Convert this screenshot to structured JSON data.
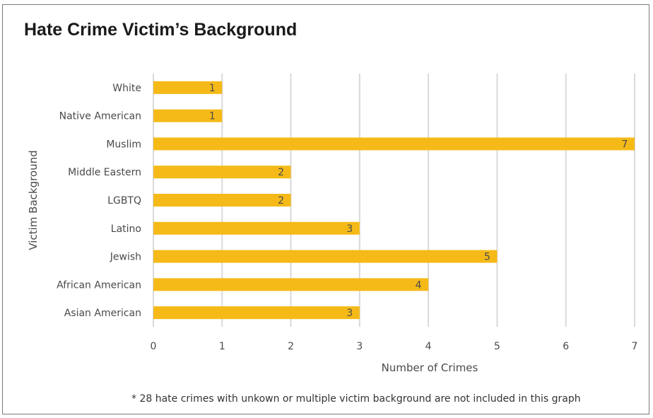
{
  "title": "Hate Crime Victim’s Background",
  "footnote": "* 28 hate crimes with unkown or multiple victim background are not included in this graph",
  "colors": {
    "bar": "#F5BA18",
    "grid": "#d9d9d9"
  },
  "chart_data": {
    "type": "bar",
    "orientation": "horizontal",
    "categories": [
      "White",
      "Native American",
      "Muslim",
      "Middle Eastern",
      "LGBTQ",
      "Latino",
      "Jewish",
      "African American",
      "Asian American"
    ],
    "values": [
      1,
      1,
      7,
      2,
      2,
      3,
      5,
      4,
      3
    ],
    "data_labels": [
      "1",
      "1",
      "7",
      "2",
      "2",
      "3",
      "5",
      "4",
      "3"
    ],
    "xlabel": "Number of Crimes",
    "ylabel": "Victim Background",
    "xlim": [
      0,
      7
    ],
    "x_ticks": [
      "0",
      "1",
      "2",
      "3",
      "4",
      "5",
      "6",
      "7"
    ],
    "grid": "vertical"
  }
}
